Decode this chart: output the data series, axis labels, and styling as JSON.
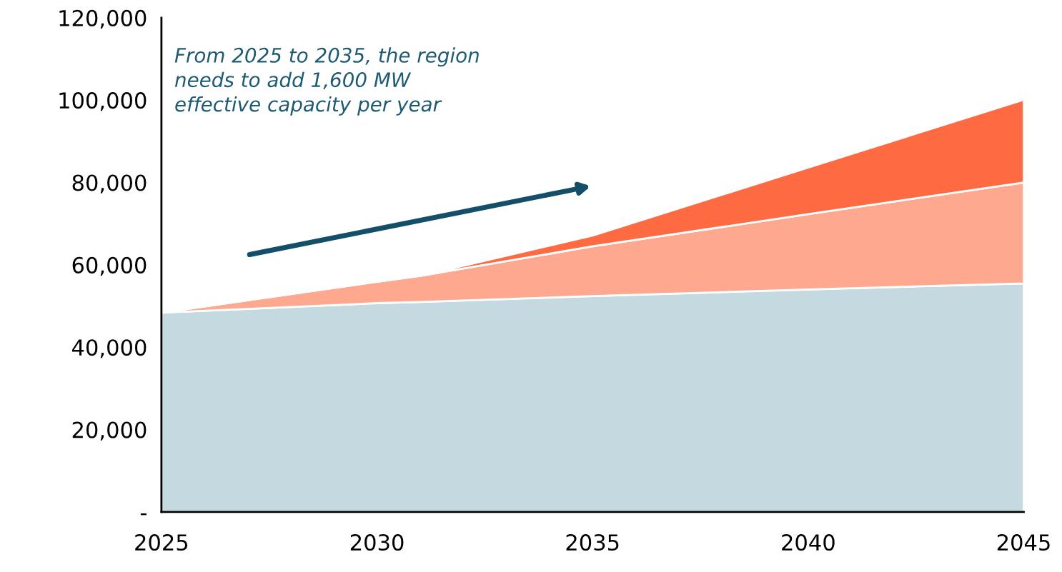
{
  "chart_data": {
    "type": "area",
    "stacked": true,
    "x": [
      2025,
      2030,
      2031,
      2035,
      2040,
      2045
    ],
    "series": [
      {
        "color": "#c5d9e1",
        "values": [
          48400,
          50700,
          51000,
          52400,
          54000,
          55500
        ]
      },
      {
        "color": "#fea88f",
        "values": [
          0,
          5200,
          6300,
          12100,
          18300,
          24500
        ]
      },
      {
        "color": "#fe6a41",
        "values": [
          0,
          0,
          0,
          2600,
          11300,
          20100
        ]
      }
    ],
    "xlim": [
      2025,
      2045
    ],
    "xticks": [
      2025,
      2030,
      2035,
      2040,
      2045
    ],
    "ylim": [
      0,
      120000
    ],
    "yticks": [
      {
        "value": 0,
        "label": "-"
      },
      {
        "value": 20000,
        "label": "20,000"
      },
      {
        "value": 40000,
        "label": "40,000"
      },
      {
        "value": 60000,
        "label": "60,000"
      },
      {
        "value": 80000,
        "label": "80,000"
      },
      {
        "value": 100000,
        "label": "100,000"
      },
      {
        "value": 120000,
        "label": "120,000"
      }
    ],
    "grid": false,
    "legend": false,
    "annotations": [
      "From 2025 to 2035, the region\nneeds to add 1,600 MW\neffective capacity per year"
    ]
  }
}
